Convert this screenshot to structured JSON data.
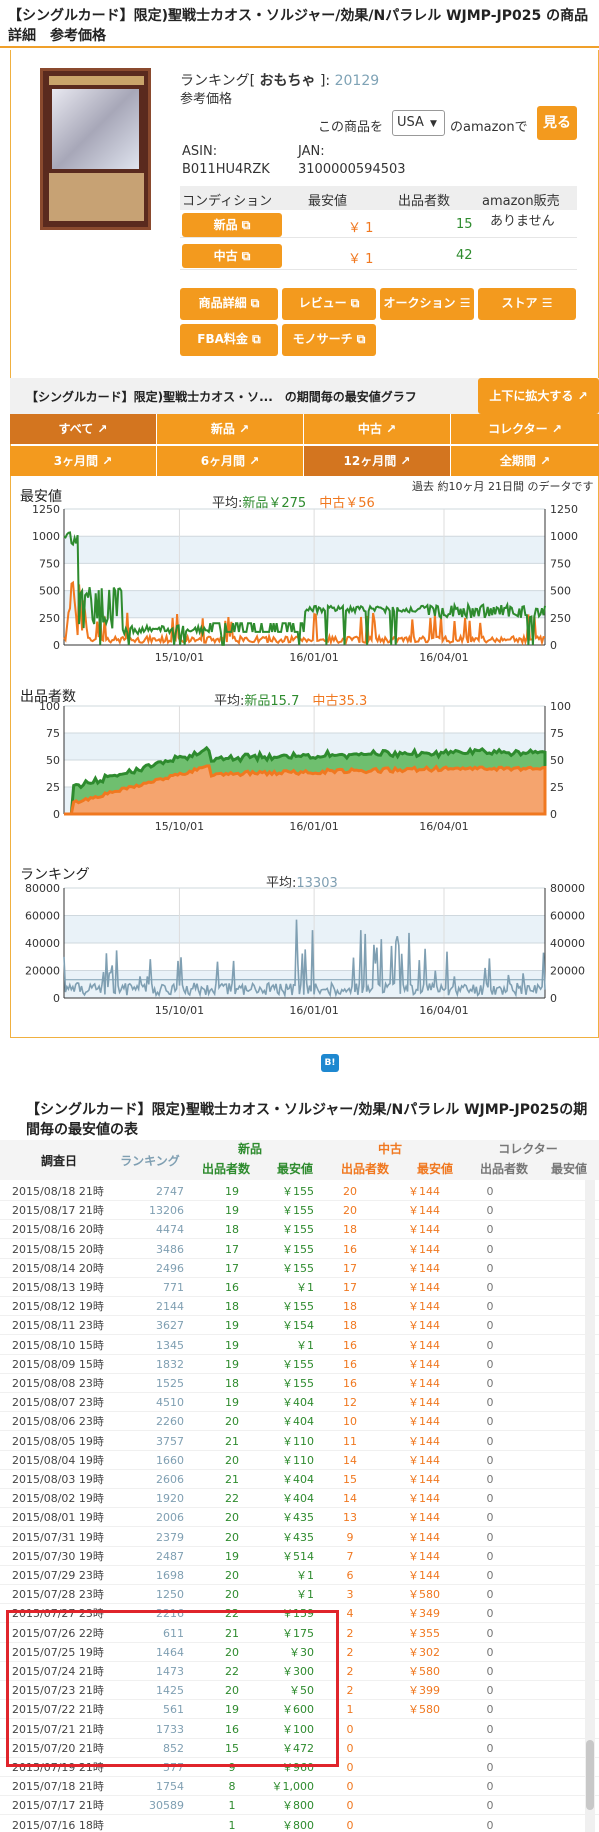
{
  "product": {
    "title": "【シングルカード】限定)聖戦士カオス・ソルジャー/効果/Nパラレル WJMP-JP025 の商品詳細　参考価格",
    "ranking_prefix": "ランキング[",
    "ranking_category": "おもちゃ",
    "ranking_suffix": "]:",
    "ranking_value": "20129",
    "ref_price": "参考価格",
    "amazon_prefix": "この商品を",
    "country": "USA",
    "amazon_suffix": "のamazonで",
    "view_button": "見る",
    "asin_label": "ASIN:",
    "asin": "B011HU4RZK",
    "jan_label": "JAN:",
    "jan": "3100000594503"
  },
  "conditions": {
    "headers": [
      "コンディション",
      "最安値",
      "出品者数",
      "amazon販売"
    ],
    "rows": [
      {
        "label": "新品",
        "price": "￥ 1",
        "sellers": "15",
        "amazon": "ありません"
      },
      {
        "label": "中古",
        "price": "￥ 1",
        "sellers": "42",
        "amazon": ""
      }
    ]
  },
  "actions": {
    "detail": "商品詳細",
    "review": "レビュー",
    "auction": "オークション ☰",
    "store": "ストア ☰",
    "fba": "FBA料金",
    "monosearch": "モノサーチ"
  },
  "graph": {
    "header": "【シングルカード】限定)聖戦士カオス・ソ...　の期間毎の最安値グラフ",
    "expand": "上下に拡大する",
    "tabs_type": [
      "すべて",
      "新品",
      "中古",
      "コレクター"
    ],
    "tabs_period": [
      "3ヶ月間",
      "6ヶ月間",
      "12ヶ月間",
      "全期間"
    ],
    "note": "過去 約10ヶ月 21日間 のデータです"
  },
  "colors": {
    "new": "#2e8b2e",
    "used": "#f07820",
    "rank": "#7f9fb2",
    "accent": "#f39a1e"
  },
  "chart_data": [
    {
      "type": "line",
      "title": "最安値",
      "avg_label": "平均:",
      "avg_new": "新品￥275",
      "avg_used": "中古￥56",
      "ylim": [
        0,
        1250
      ],
      "yticks": [
        "1250",
        "1000",
        "750",
        "500",
        "250",
        "0"
      ],
      "xticks": [
        "15/10/01",
        "16/01/01",
        "16/04/01"
      ],
      "series": [
        {
          "name": "新品",
          "color": "#2e8b2e"
        },
        {
          "name": "中古",
          "color": "#f07820"
        }
      ]
    },
    {
      "type": "area",
      "title": "出品者数",
      "avg_label": "平均:",
      "avg_new": "新品15.7",
      "avg_used": "中古35.3",
      "ylim": [
        0,
        100
      ],
      "yticks": [
        "100",
        "75",
        "50",
        "25",
        "0"
      ],
      "xticks": [
        "15/10/01",
        "16/01/01",
        "16/04/01"
      ],
      "series": [
        {
          "name": "新品",
          "color": "#2e8b2e"
        },
        {
          "name": "中古",
          "color": "#f07820"
        }
      ]
    },
    {
      "type": "line",
      "title": "ランキング",
      "avg_label": "平均:",
      "avg_rank": "13303",
      "ylim": [
        0,
        80000
      ],
      "yticks": [
        "80000",
        "60000",
        "40000",
        "20000",
        "0"
      ],
      "xticks": [
        "15/10/01",
        "16/01/01",
        "16/04/01"
      ],
      "series": [
        {
          "name": "ランキング",
          "color": "#7f9fb2"
        }
      ]
    }
  ],
  "hatena": "B!",
  "table": {
    "title": "【シングルカード】限定)聖戦士カオス・ソルジャー/効果/Nパラレル WJMP-JP025の期間毎の最安値の表",
    "group_new": "新品",
    "group_used": "中古",
    "group_col": "コレクター",
    "h_date": "調査日",
    "h_rank": "ランキング",
    "h_sellers": "出品者数",
    "h_price": "最安値",
    "rows": [
      [
        "2015/08/18 21時",
        "2747",
        "19",
        "￥155",
        "20",
        "￥144",
        "0"
      ],
      [
        "2015/08/17 21時",
        "13206",
        "19",
        "￥155",
        "20",
        "￥144",
        "0"
      ],
      [
        "2015/08/16 20時",
        "4474",
        "18",
        "￥155",
        "18",
        "￥144",
        "0"
      ],
      [
        "2015/08/15 20時",
        "3486",
        "17",
        "￥155",
        "16",
        "￥144",
        "0"
      ],
      [
        "2015/08/14 20時",
        "2496",
        "17",
        "￥155",
        "17",
        "￥144",
        "0"
      ],
      [
        "2015/08/13 19時",
        "771",
        "16",
        "￥1",
        "17",
        "￥144",
        "0"
      ],
      [
        "2015/08/12 19時",
        "2144",
        "18",
        "￥155",
        "18",
        "￥144",
        "0"
      ],
      [
        "2015/08/11 23時",
        "3627",
        "19",
        "￥154",
        "18",
        "￥144",
        "0"
      ],
      [
        "2015/08/10 15時",
        "1345",
        "19",
        "￥1",
        "16",
        "￥144",
        "0"
      ],
      [
        "2015/08/09 15時",
        "1832",
        "19",
        "￥155",
        "16",
        "￥144",
        "0"
      ],
      [
        "2015/08/08 23時",
        "1525",
        "18",
        "￥155",
        "16",
        "￥144",
        "0"
      ],
      [
        "2015/08/07 23時",
        "4510",
        "19",
        "￥404",
        "12",
        "￥144",
        "0"
      ],
      [
        "2015/08/06 23時",
        "2260",
        "20",
        "￥404",
        "10",
        "￥144",
        "0"
      ],
      [
        "2015/08/05 19時",
        "3757",
        "21",
        "￥110",
        "11",
        "￥144",
        "0"
      ],
      [
        "2015/08/04 19時",
        "1660",
        "20",
        "￥110",
        "14",
        "￥144",
        "0"
      ],
      [
        "2015/08/03 19時",
        "2606",
        "21",
        "￥404",
        "15",
        "￥144",
        "0"
      ],
      [
        "2015/08/02 19時",
        "1920",
        "22",
        "￥404",
        "14",
        "￥144",
        "0"
      ],
      [
        "2015/08/01 19時",
        "2006",
        "20",
        "￥435",
        "13",
        "￥144",
        "0"
      ],
      [
        "2015/07/31 19時",
        "2379",
        "20",
        "￥435",
        "9",
        "￥144",
        "0"
      ],
      [
        "2015/07/30 19時",
        "2487",
        "19",
        "￥514",
        "7",
        "￥144",
        "0"
      ],
      [
        "2015/07/29 23時",
        "1698",
        "20",
        "￥1",
        "6",
        "￥144",
        "0"
      ],
      [
        "2015/07/28 23時",
        "1250",
        "20",
        "￥1",
        "3",
        "￥580",
        "0"
      ],
      [
        "2015/07/27 23時",
        "2216",
        "22",
        "￥159",
        "4",
        "￥349",
        "0"
      ],
      [
        "2015/07/26 22時",
        "611",
        "21",
        "￥175",
        "2",
        "￥355",
        "0"
      ],
      [
        "2015/07/25 19時",
        "1464",
        "20",
        "￥30",
        "2",
        "￥302",
        "0"
      ],
      [
        "2015/07/24 21時",
        "1473",
        "22",
        "￥300",
        "2",
        "￥580",
        "0"
      ],
      [
        "2015/07/23 21時",
        "1425",
        "20",
        "￥50",
        "2",
        "￥399",
        "0"
      ],
      [
        "2015/07/22 21時",
        "561",
        "19",
        "￥600",
        "1",
        "￥580",
        "0"
      ],
      [
        "2015/07/21 21時",
        "1733",
        "16",
        "￥100",
        "0",
        "",
        "0"
      ],
      [
        "2015/07/20 21時",
        "852",
        "15",
        "￥472",
        "0",
        "",
        "0"
      ],
      [
        "2015/07/19 21時",
        "577",
        "9",
        "￥960",
        "0",
        "",
        "0"
      ],
      [
        "2015/07/18 21時",
        "1754",
        "8",
        "￥1,000",
        "0",
        "",
        "0"
      ],
      [
        "2015/07/17 21時",
        "30589",
        "1",
        "￥800",
        "0",
        "",
        "0"
      ],
      [
        "2015/07/16 18時",
        "",
        "1",
        "￥800",
        "0",
        "",
        "0"
      ]
    ]
  }
}
